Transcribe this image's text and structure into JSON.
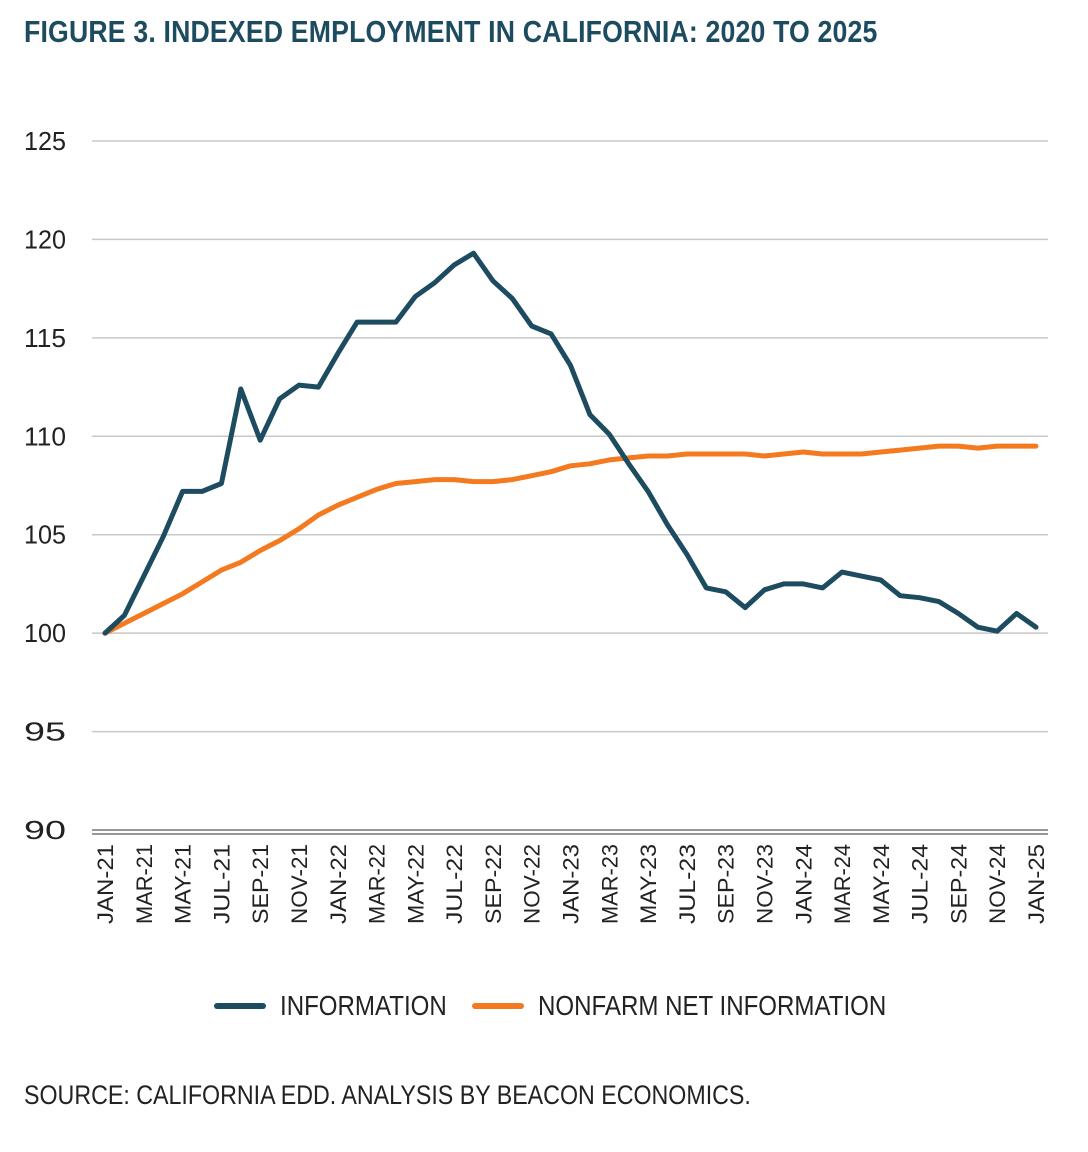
{
  "title": "FIGURE 3. INDEXED EMPLOYMENT IN CALIFORNIA: 2020 TO 2025",
  "source": "SOURCE: CALIFORNIA EDD. ANALYSIS BY BEACON ECONOMICS.",
  "chart_data": {
    "type": "line",
    "title": "FIGURE 3. INDEXED EMPLOYMENT IN CALIFORNIA: 2020 TO 2025",
    "xlabel": "",
    "ylabel": "",
    "ylim": [
      90,
      125
    ],
    "yticks": [
      90,
      95,
      100,
      105,
      110,
      115,
      120,
      125
    ],
    "grid": true,
    "legend": "bottom",
    "x_tick_labels": [
      "JAN-21",
      "MAR-21",
      "MAY-21",
      "JUL-21",
      "SEP-21",
      "NOV-21",
      "JAN-22",
      "MAR-22",
      "MAY-22",
      "JUL-22",
      "SEP-22",
      "NOV-22",
      "JAN-23",
      "MAR-23",
      "MAY-23",
      "JUL-23",
      "SEP-23",
      "NOV-23",
      "JAN-24",
      "MAR-24",
      "MAY-24",
      "JUL-24",
      "SEP-24",
      "NOV-24",
      "JAN-25"
    ],
    "x": [
      "JAN-21",
      "FEB-21",
      "MAR-21",
      "APR-21",
      "MAY-21",
      "JUN-21",
      "JUL-21",
      "AUG-21",
      "SEP-21",
      "OCT-21",
      "NOV-21",
      "DEC-21",
      "JAN-22",
      "FEB-22",
      "MAR-22",
      "APR-22",
      "MAY-22",
      "JUN-22",
      "JUL-22",
      "AUG-22",
      "SEP-22",
      "OCT-22",
      "NOV-22",
      "DEC-22",
      "JAN-23",
      "FEB-23",
      "MAR-23",
      "APR-23",
      "MAY-23",
      "JUN-23",
      "JUL-23",
      "AUG-23",
      "SEP-23",
      "OCT-23",
      "NOV-23",
      "DEC-23",
      "JAN-24",
      "FEB-24",
      "MAR-24",
      "APR-24",
      "MAY-24",
      "JUN-24",
      "JUL-24",
      "AUG-24",
      "SEP-24",
      "OCT-24",
      "NOV-24",
      "DEC-24",
      "JAN-25"
    ],
    "series": [
      {
        "name": "INFORMATION",
        "color": "#1d4b5f",
        "values": [
          100.0,
          100.9,
          102.9,
          104.9,
          107.2,
          107.2,
          107.6,
          112.4,
          109.8,
          111.9,
          112.6,
          112.5,
          114.2,
          115.8,
          115.8,
          115.8,
          117.1,
          117.8,
          118.7,
          119.3,
          117.9,
          117.0,
          115.6,
          115.2,
          113.6,
          111.1,
          110.1,
          108.6,
          107.2,
          105.5,
          104.0,
          102.3,
          102.1,
          101.3,
          102.2,
          102.5,
          102.5,
          102.3,
          103.1,
          102.9,
          102.7,
          101.9,
          101.8,
          101.6,
          101.0,
          100.3,
          100.1,
          101.0,
          100.3
        ]
      },
      {
        "name": "NONFARM NET INFORMATION",
        "color": "#f47a20",
        "values": [
          100.0,
          100.5,
          101.0,
          101.5,
          102.0,
          102.6,
          103.2,
          103.6,
          104.2,
          104.7,
          105.3,
          106.0,
          106.5,
          106.9,
          107.3,
          107.6,
          107.7,
          107.8,
          107.8,
          107.7,
          107.7,
          107.8,
          108.0,
          108.2,
          108.5,
          108.6,
          108.8,
          108.9,
          109.0,
          109.0,
          109.1,
          109.1,
          109.1,
          109.1,
          109.0,
          109.1,
          109.2,
          109.1,
          109.1,
          109.1,
          109.2,
          109.3,
          109.4,
          109.5,
          109.5,
          109.4,
          109.5,
          109.5,
          109.5
        ]
      }
    ]
  },
  "legend": {
    "items": [
      {
        "label": "INFORMATION",
        "color": "#1d4b5f"
      },
      {
        "label": "NONFARM NET INFORMATION",
        "color": "#f47a20"
      }
    ]
  }
}
